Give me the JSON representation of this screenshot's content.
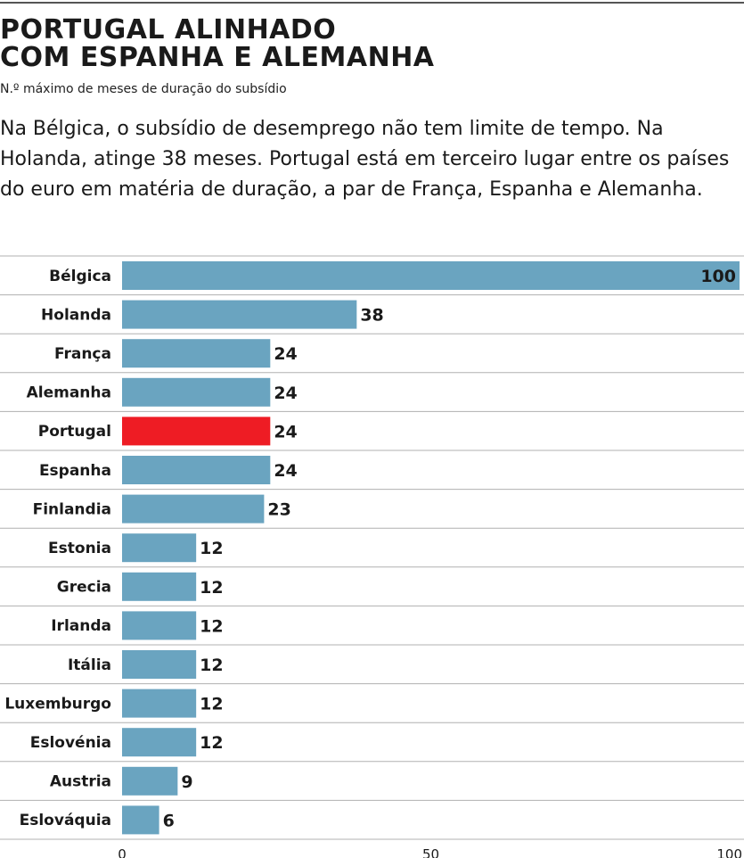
{
  "header": {
    "title_line1": "PORTUGAL ALINHADO",
    "title_line2": "COM ESPANHA E ALEMANHA",
    "subtitle": "N.º máximo de meses de duração do subsídio",
    "lead": "Na Bélgica, o subsídio de desemprego não tem limite de tempo. Na Holanda, atinge 38 meses. Portugal está em terceiro lugar entre os países do euro em matéria de duração, a par de França, Espanha e Alemanha."
  },
  "colors": {
    "bar": "#6aa4c0",
    "highlight": "#ee1c24",
    "gridline": "#b0b0b0"
  },
  "chart_data": {
    "type": "bar",
    "orientation": "horizontal",
    "categories": [
      "Bélgica",
      "Holanda",
      "França",
      "Alemanha",
      "Portugal",
      "Espanha",
      "Finlandia",
      "Estonia",
      "Grecia",
      "Irlanda",
      "Itália",
      "Luxemburgo",
      "Eslovénia",
      "Austria",
      "Eslováquia"
    ],
    "values": [
      100,
      38,
      24,
      24,
      24,
      24,
      23,
      12,
      12,
      12,
      12,
      12,
      12,
      9,
      6
    ],
    "highlight": "Portugal",
    "xlim": [
      0,
      100
    ],
    "xticks": [
      0,
      50,
      100
    ]
  }
}
